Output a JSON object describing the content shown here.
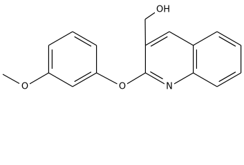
{
  "atoms": [
    {
      "label": "OH"
    },
    {
      "label": "O"
    },
    {
      "label": "N"
    },
    {
      "label": "O"
    }
  ]
}
